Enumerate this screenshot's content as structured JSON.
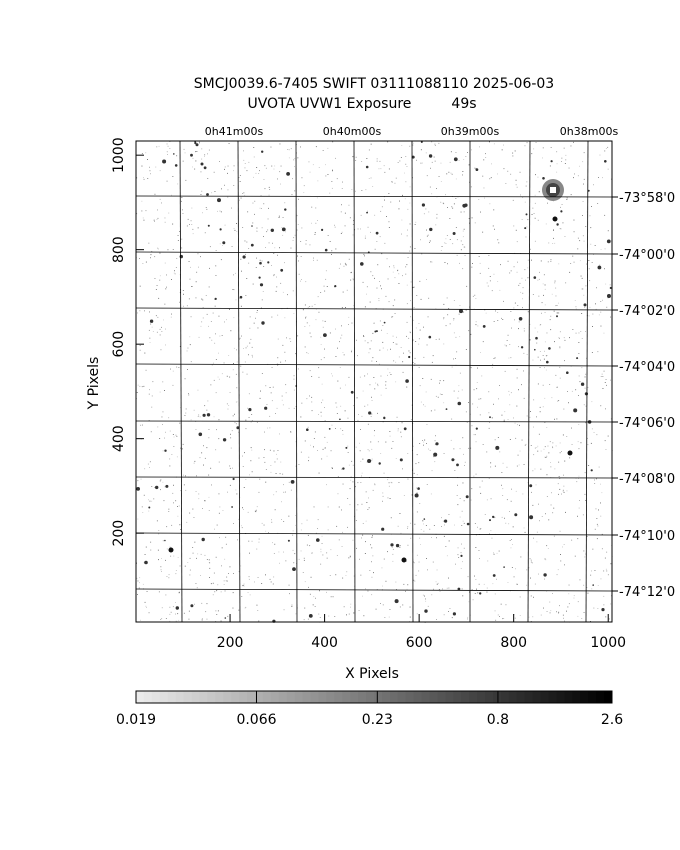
{
  "chart_data": {
    "type": "image",
    "title": "SMCJ0039.6-7405 SWIFT 03111088110 2025-06-03",
    "subtitle": "UVOTA UVW1 Exposure         49s",
    "xlabel": "X Pixels",
    "ylabel": "Y Pixels",
    "xlim": [
      1,
      1008
    ],
    "ylim": [
      12,
      1030
    ],
    "xticks": [
      200,
      400,
      600,
      800,
      1000
    ],
    "yticks": [
      200,
      400,
      600,
      800,
      1000
    ],
    "ra_labels": [
      "0h41m00s",
      "0h40m00s",
      "0h39m00s",
      "0h38m00s"
    ],
    "dec_labels": [
      "-73°58'0",
      "-74°00'0",
      "-74°02'0",
      "-74°04'0",
      "-74°06'0",
      "-74°08'0",
      "-74°10'0",
      "-74°12'0"
    ],
    "colorbar": {
      "lim": [
        0.019,
        2.6
      ],
      "log": true,
      "ticks": [
        0.019,
        0.066,
        0.23,
        0.8,
        2.6
      ]
    }
  }
}
